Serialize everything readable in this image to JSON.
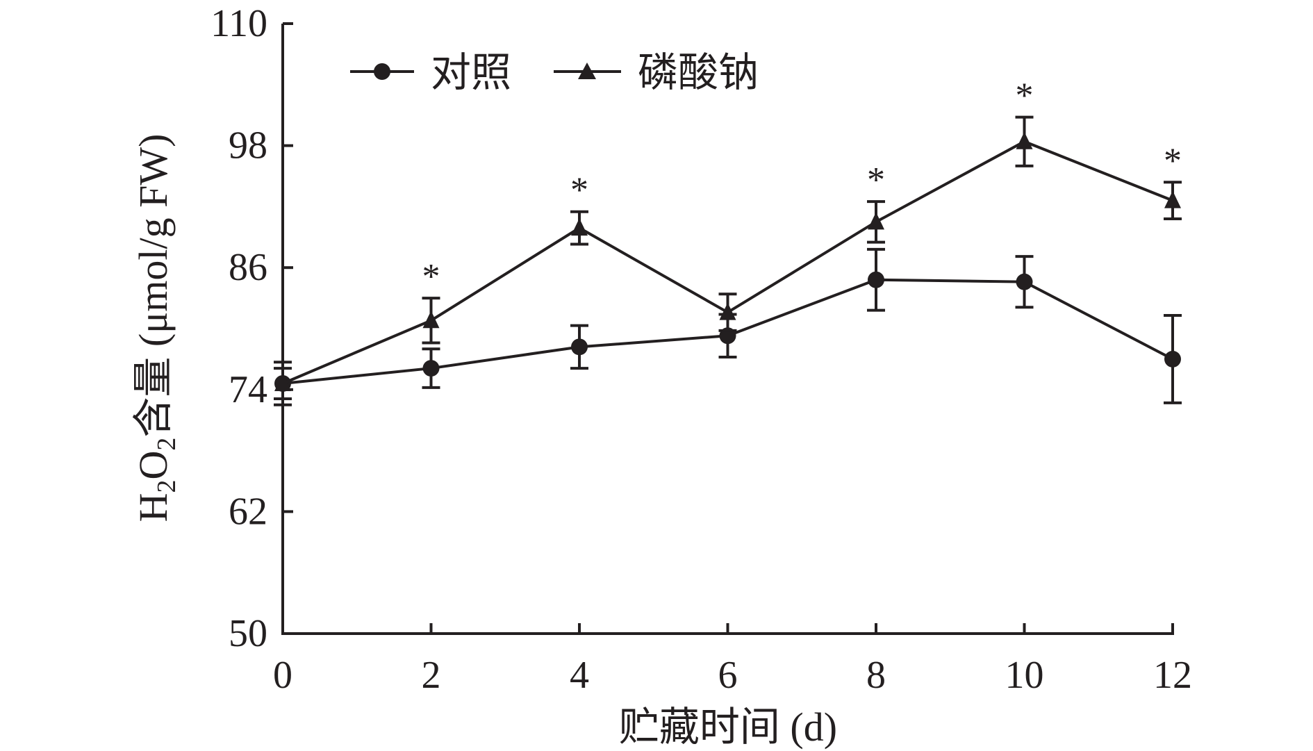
{
  "chart_data": {
    "type": "line",
    "title": "",
    "xlabel": "贮藏时间 (d)",
    "ylabel": {
      "prefix": "H",
      "sub1": "2",
      "mid": "O",
      "sub2": "2",
      "suffix": "含量 (μmol/g FW)"
    },
    "x": [
      0,
      2,
      4,
      6,
      8,
      10,
      12
    ],
    "xticks": [
      "0",
      "2",
      "4",
      "6",
      "8",
      "10",
      "12"
    ],
    "yticks": [
      "50",
      "62",
      "74",
      "86",
      "98",
      "110"
    ],
    "xlim": [
      0,
      12
    ],
    "ylim": [
      50,
      110
    ],
    "grid": false,
    "legend_position": "top-left",
    "series": [
      {
        "name": "对照",
        "marker": "circle",
        "values": [
          74.6,
          76.1,
          78.2,
          79.3,
          84.8,
          84.6,
          77.0
        ],
        "errors": [
          2.1,
          1.9,
          2.1,
          2.1,
          3.0,
          2.5,
          4.3
        ]
      },
      {
        "name": "磷酸钠",
        "marker": "triangle",
        "values": [
          74.6,
          80.8,
          89.9,
          81.6,
          90.5,
          98.4,
          92.6
        ],
        "errors": [
          1.5,
          2.2,
          1.6,
          1.8,
          2.0,
          2.4,
          1.8
        ]
      }
    ],
    "significance_mark": "*",
    "significant_x": [
      2,
      4,
      8,
      10,
      12
    ],
    "color": "#231f20"
  }
}
